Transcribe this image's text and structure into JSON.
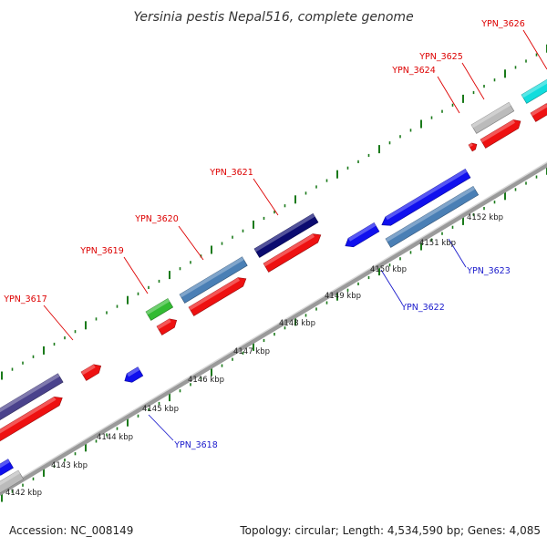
{
  "title": "Yersinia pestis Nepal516, complete genome",
  "footer": {
    "accession": "Accession: NC_008149",
    "summary": "Topology: circular; Length: 4,534,590 bp; Genes: 4,085"
  },
  "colors": {
    "backbone": "#888888",
    "tick": "#1a7a1a",
    "plus_label": "#dd0000",
    "minus_label": "#1a1acc",
    "navy": "#0b0b70",
    "steel": "#4a7fb5",
    "red": "#ee1111",
    "blue": "#1010ee",
    "green": "#33bb33",
    "purple": "#4a428c",
    "gray": "#bbbbbb",
    "cyan": "#11dddd"
  },
  "tick_labels": [
    "4142 kbp",
    "4143 kbp",
    "4144 kbp",
    "4145 kbp",
    "4146 kbp",
    "4147 kbp",
    "4148 kbp",
    "4149 kbp",
    "4150 kbp",
    "4151 kbp",
    "4152 kbp"
  ],
  "genes": [
    {
      "label": "YPN_3617",
      "strand": "plus",
      "color": "purple"
    },
    {
      "label": "YPN_3618",
      "strand": "minus",
      "color": "blue"
    },
    {
      "label": "YPN_3619",
      "strand": "plus",
      "color": "green"
    },
    {
      "label": "YPN_3620",
      "strand": "plus",
      "color": "steel"
    },
    {
      "label": "YPN_3621",
      "strand": "plus",
      "color": "navy"
    },
    {
      "label": "YPN_3622",
      "strand": "minus",
      "color": "blue"
    },
    {
      "label": "YPN_3623",
      "strand": "minus",
      "color": "steel"
    },
    {
      "label": "YPN_3624",
      "strand": "plus",
      "color": "red"
    },
    {
      "label": "YPN_3625",
      "strand": "plus",
      "color": "gray"
    },
    {
      "label": "YPN_3626",
      "strand": "plus",
      "color": "cyan"
    }
  ]
}
